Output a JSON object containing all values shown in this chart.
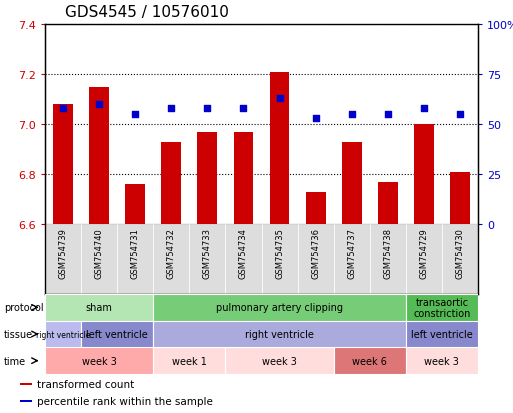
{
  "title": "GDS4545 / 10576010",
  "samples": [
    "GSM754739",
    "GSM754740",
    "GSM754731",
    "GSM754732",
    "GSM754733",
    "GSM754734",
    "GSM754735",
    "GSM754736",
    "GSM754737",
    "GSM754738",
    "GSM754729",
    "GSM754730"
  ],
  "bar_values": [
    7.08,
    7.15,
    6.76,
    6.93,
    6.97,
    6.97,
    7.21,
    6.73,
    6.93,
    6.77,
    7.0,
    6.81
  ],
  "percentile_values": [
    58,
    60,
    55,
    58,
    58,
    58,
    63,
    53,
    55,
    55,
    58,
    55
  ],
  "ylim_left": [
    6.6,
    7.4
  ],
  "ylim_right": [
    0,
    100
  ],
  "yticks_left": [
    6.6,
    6.8,
    7.0,
    7.2,
    7.4
  ],
  "yticks_right": [
    0,
    25,
    50,
    75,
    100
  ],
  "bar_color": "#cc0000",
  "dot_color": "#0000cc",
  "bar_baseline": 6.6,
  "protocol_rows": [
    {
      "label": "sham",
      "start": 0,
      "end": 3,
      "color": "#b3e6b3"
    },
    {
      "label": "pulmonary artery clipping",
      "start": 3,
      "end": 10,
      "color": "#77cc77"
    },
    {
      "label": "transaortic\nconstriction",
      "start": 10,
      "end": 12,
      "color": "#55bb55"
    }
  ],
  "tissue_rows": [
    {
      "label": "right ventricle",
      "start": 0,
      "end": 1,
      "color": "#bbbbee"
    },
    {
      "label": "left ventricle",
      "start": 1,
      "end": 3,
      "color": "#8888cc"
    },
    {
      "label": "right ventricle",
      "start": 3,
      "end": 10,
      "color": "#aaaadd"
    },
    {
      "label": "left ventricle",
      "start": 10,
      "end": 12,
      "color": "#8888cc"
    }
  ],
  "time_rows": [
    {
      "label": "week 3",
      "start": 0,
      "end": 3,
      "color": "#ffaaaa"
    },
    {
      "label": "week 1",
      "start": 3,
      "end": 5,
      "color": "#ffdddd"
    },
    {
      "label": "week 3",
      "start": 5,
      "end": 8,
      "color": "#ffdddd"
    },
    {
      "label": "week 6",
      "start": 8,
      "end": 10,
      "color": "#dd7777"
    },
    {
      "label": "week 3",
      "start": 10,
      "end": 12,
      "color": "#ffdddd"
    }
  ],
  "row_labels": [
    "protocol",
    "tissue",
    "time"
  ],
  "legend_items": [
    {
      "label": "transformed count",
      "color": "#cc0000"
    },
    {
      "label": "percentile rank within the sample",
      "color": "#0000cc"
    }
  ],
  "sample_bg_color": "#dddddd",
  "title_fontsize": 11
}
